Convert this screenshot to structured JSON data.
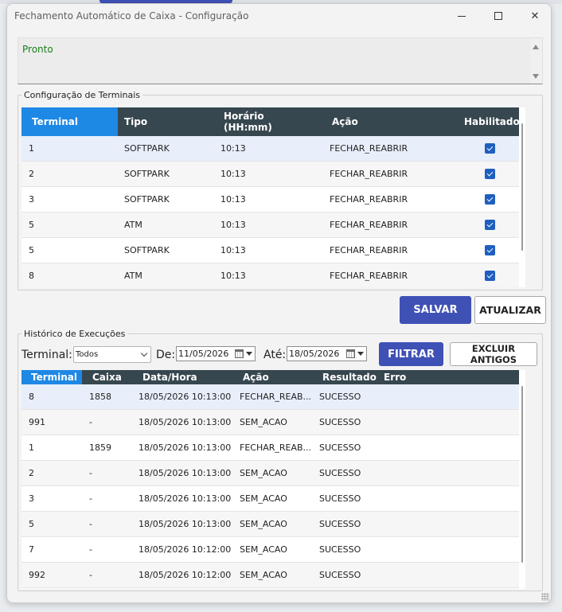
{
  "window": {
    "title": "Fechamento Automático de Caixa - Configuração",
    "close_glyph": "✕"
  },
  "status": {
    "text": "Pronto"
  },
  "terminals": {
    "group_label": "Configuração de Terminais",
    "columns": {
      "terminal": "Terminal",
      "tipo": "Tipo",
      "horario_1": "Horário",
      "horario_2": "(HH:mm)",
      "acao": "Ação",
      "habilitado": "Habilitado"
    },
    "rows": [
      {
        "terminal": "1",
        "tipo": "SOFTPARK",
        "horario": "10:13",
        "acao": "FECHAR_REABRIR",
        "habilitado": true
      },
      {
        "terminal": "2",
        "tipo": "SOFTPARK",
        "horario": "10:13",
        "acao": "FECHAR_REABRIR",
        "habilitado": true
      },
      {
        "terminal": "3",
        "tipo": "SOFTPARK",
        "horario": "10:13",
        "acao": "FECHAR_REABRIR",
        "habilitado": true
      },
      {
        "terminal": "5",
        "tipo": "ATM",
        "horario": "10:13",
        "acao": "FECHAR_REABRIR",
        "habilitado": true
      },
      {
        "terminal": "5",
        "tipo": "SOFTPARK",
        "horario": "10:13",
        "acao": "FECHAR_REABRIR",
        "habilitado": true
      },
      {
        "terminal": "8",
        "tipo": "ATM",
        "horario": "10:13",
        "acao": "FECHAR_REABRIR",
        "habilitado": true
      }
    ],
    "buttons": {
      "salvar": "SALVAR",
      "atualizar": "ATUALIZAR"
    }
  },
  "history": {
    "group_label": "Histórico de Execuções",
    "filters": {
      "terminal_label": "Terminal:",
      "terminal_value": "Todos",
      "de_label": "De:",
      "de_value": "11/05/2026",
      "ate_label": "Até:",
      "ate_value": "18/05/2026",
      "filtrar": "FILTRAR",
      "excluir_1": "EXCLUIR",
      "excluir_2": "ANTIGOS"
    },
    "columns": {
      "terminal": "Terminal",
      "caixa": "Caixa",
      "datahora": "Data/Hora",
      "acao": "Ação",
      "resultado": "Resultado",
      "erro": "Erro"
    },
    "rows": [
      {
        "terminal": "8",
        "caixa": "1858",
        "datahora": "18/05/2026 10:13:00",
        "acao": "FECHAR_REAB...",
        "resultado": "SUCESSO",
        "erro": ""
      },
      {
        "terminal": "991",
        "caixa": "-",
        "datahora": "18/05/2026 10:13:00",
        "acao": "SEM_ACAO",
        "resultado": "SUCESSO",
        "erro": ""
      },
      {
        "terminal": "1",
        "caixa": "1859",
        "datahora": "18/05/2026 10:13:00",
        "acao": "FECHAR_REAB...",
        "resultado": "SUCESSO",
        "erro": ""
      },
      {
        "terminal": "2",
        "caixa": "-",
        "datahora": "18/05/2026 10:13:00",
        "acao": "SEM_ACAO",
        "resultado": "SUCESSO",
        "erro": ""
      },
      {
        "terminal": "3",
        "caixa": "-",
        "datahora": "18/05/2026 10:13:00",
        "acao": "SEM_ACAO",
        "resultado": "SUCESSO",
        "erro": ""
      },
      {
        "terminal": "5",
        "caixa": "-",
        "datahora": "18/05/2026 10:13:00",
        "acao": "SEM_ACAO",
        "resultado": "SUCESSO",
        "erro": ""
      },
      {
        "terminal": "7",
        "caixa": "-",
        "datahora": "18/05/2026 10:12:00",
        "acao": "SEM_ACAO",
        "resultado": "SUCESSO",
        "erro": ""
      },
      {
        "terminal": "992",
        "caixa": "-",
        "datahora": "18/05/2026 10:12:00",
        "acao": "SEM_ACAO",
        "resultado": "SUCESSO",
        "erro": ""
      }
    ]
  },
  "colors": {
    "accent": "#3f51b5",
    "header": "#37474f",
    "header_active": "#1e88e5",
    "status_ok": "#1a7f1a",
    "checkbox": "#1f5fbf"
  }
}
